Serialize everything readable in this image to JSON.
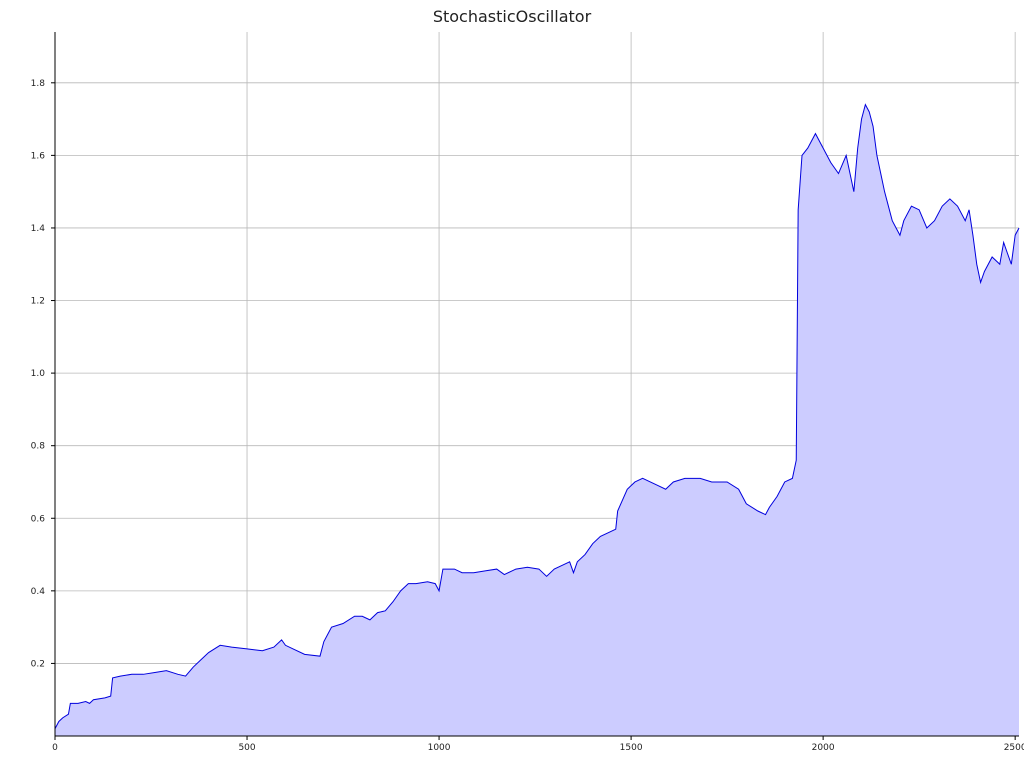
{
  "chart_data": {
    "type": "area",
    "title": "StochasticOscillator",
    "xlabel": "",
    "ylabel": "",
    "xlim": [
      0,
      2510
    ],
    "ylim": [
      0,
      1.94
    ],
    "grid": true,
    "x_ticks": [
      0,
      500,
      1000,
      1500,
      2000,
      2500
    ],
    "y_ticks": [
      0.2,
      0.4,
      0.6,
      0.8,
      1.0,
      1.2,
      1.4,
      1.6,
      1.8
    ],
    "x_tick_labels": [
      "0",
      "500",
      "1000",
      "1500",
      "2000",
      "2500"
    ],
    "y_tick_labels": [
      "0.2",
      "0.4",
      "0.6",
      "0.8",
      "1.0",
      "1.2",
      "1.4",
      "1.6",
      "1.8"
    ],
    "series": [
      {
        "color": "#0000dd",
        "fill": "#ccccff",
        "points": [
          [
            0,
            0.02
          ],
          [
            10,
            0.04
          ],
          [
            20,
            0.05
          ],
          [
            35,
            0.06
          ],
          [
            40,
            0.09
          ],
          [
            60,
            0.09
          ],
          [
            80,
            0.095
          ],
          [
            90,
            0.09
          ],
          [
            100,
            0.1
          ],
          [
            130,
            0.105
          ],
          [
            145,
            0.11
          ],
          [
            150,
            0.16
          ],
          [
            170,
            0.165
          ],
          [
            200,
            0.17
          ],
          [
            230,
            0.17
          ],
          [
            260,
            0.175
          ],
          [
            290,
            0.18
          ],
          [
            320,
            0.17
          ],
          [
            340,
            0.165
          ],
          [
            360,
            0.19
          ],
          [
            380,
            0.21
          ],
          [
            400,
            0.23
          ],
          [
            430,
            0.25
          ],
          [
            460,
            0.245
          ],
          [
            500,
            0.24
          ],
          [
            540,
            0.235
          ],
          [
            570,
            0.245
          ],
          [
            590,
            0.265
          ],
          [
            600,
            0.25
          ],
          [
            620,
            0.24
          ],
          [
            650,
            0.225
          ],
          [
            690,
            0.22
          ],
          [
            700,
            0.26
          ],
          [
            720,
            0.3
          ],
          [
            750,
            0.31
          ],
          [
            780,
            0.33
          ],
          [
            800,
            0.33
          ],
          [
            820,
            0.32
          ],
          [
            840,
            0.34
          ],
          [
            860,
            0.345
          ],
          [
            880,
            0.37
          ],
          [
            900,
            0.4
          ],
          [
            920,
            0.42
          ],
          [
            940,
            0.42
          ],
          [
            970,
            0.425
          ],
          [
            990,
            0.42
          ],
          [
            1000,
            0.4
          ],
          [
            1010,
            0.46
          ],
          [
            1040,
            0.46
          ],
          [
            1060,
            0.45
          ],
          [
            1090,
            0.45
          ],
          [
            1120,
            0.455
          ],
          [
            1150,
            0.46
          ],
          [
            1170,
            0.445
          ],
          [
            1200,
            0.46
          ],
          [
            1230,
            0.465
          ],
          [
            1260,
            0.46
          ],
          [
            1280,
            0.44
          ],
          [
            1300,
            0.46
          ],
          [
            1320,
            0.47
          ],
          [
            1340,
            0.48
          ],
          [
            1350,
            0.45
          ],
          [
            1360,
            0.48
          ],
          [
            1380,
            0.5
          ],
          [
            1400,
            0.53
          ],
          [
            1420,
            0.55
          ],
          [
            1440,
            0.56
          ],
          [
            1460,
            0.57
          ],
          [
            1465,
            0.62
          ],
          [
            1490,
            0.68
          ],
          [
            1510,
            0.7
          ],
          [
            1530,
            0.71
          ],
          [
            1550,
            0.7
          ],
          [
            1570,
            0.69
          ],
          [
            1590,
            0.68
          ],
          [
            1610,
            0.7
          ],
          [
            1640,
            0.71
          ],
          [
            1680,
            0.71
          ],
          [
            1710,
            0.7
          ],
          [
            1750,
            0.7
          ],
          [
            1780,
            0.68
          ],
          [
            1800,
            0.64
          ],
          [
            1830,
            0.62
          ],
          [
            1850,
            0.61
          ],
          [
            1860,
            0.63
          ],
          [
            1880,
            0.66
          ],
          [
            1900,
            0.7
          ],
          [
            1920,
            0.71
          ],
          [
            1930,
            0.76
          ],
          [
            1935,
            1.45
          ],
          [
            1945,
            1.6
          ],
          [
            1960,
            1.62
          ],
          [
            1980,
            1.66
          ],
          [
            1995,
            1.63
          ],
          [
            2020,
            1.58
          ],
          [
            2040,
            1.55
          ],
          [
            2060,
            1.6
          ],
          [
            2070,
            1.55
          ],
          [
            2080,
            1.5
          ],
          [
            2090,
            1.62
          ],
          [
            2100,
            1.7
          ],
          [
            2110,
            1.74
          ],
          [
            2120,
            1.72
          ],
          [
            2130,
            1.68
          ],
          [
            2140,
            1.6
          ],
          [
            2150,
            1.55
          ],
          [
            2160,
            1.5
          ],
          [
            2170,
            1.46
          ],
          [
            2180,
            1.42
          ],
          [
            2190,
            1.4
          ],
          [
            2200,
            1.38
          ],
          [
            2210,
            1.42
          ],
          [
            2230,
            1.46
          ],
          [
            2250,
            1.45
          ],
          [
            2270,
            1.4
          ],
          [
            2290,
            1.42
          ],
          [
            2310,
            1.46
          ],
          [
            2330,
            1.48
          ],
          [
            2350,
            1.46
          ],
          [
            2370,
            1.42
          ],
          [
            2380,
            1.45
          ],
          [
            2390,
            1.38
          ],
          [
            2400,
            1.3
          ],
          [
            2410,
            1.25
          ],
          [
            2420,
            1.28
          ],
          [
            2440,
            1.32
          ],
          [
            2460,
            1.3
          ],
          [
            2470,
            1.36
          ],
          [
            2480,
            1.33
          ],
          [
            2490,
            1.3
          ],
          [
            2500,
            1.38
          ],
          [
            2510,
            1.4
          ]
        ]
      }
    ]
  }
}
